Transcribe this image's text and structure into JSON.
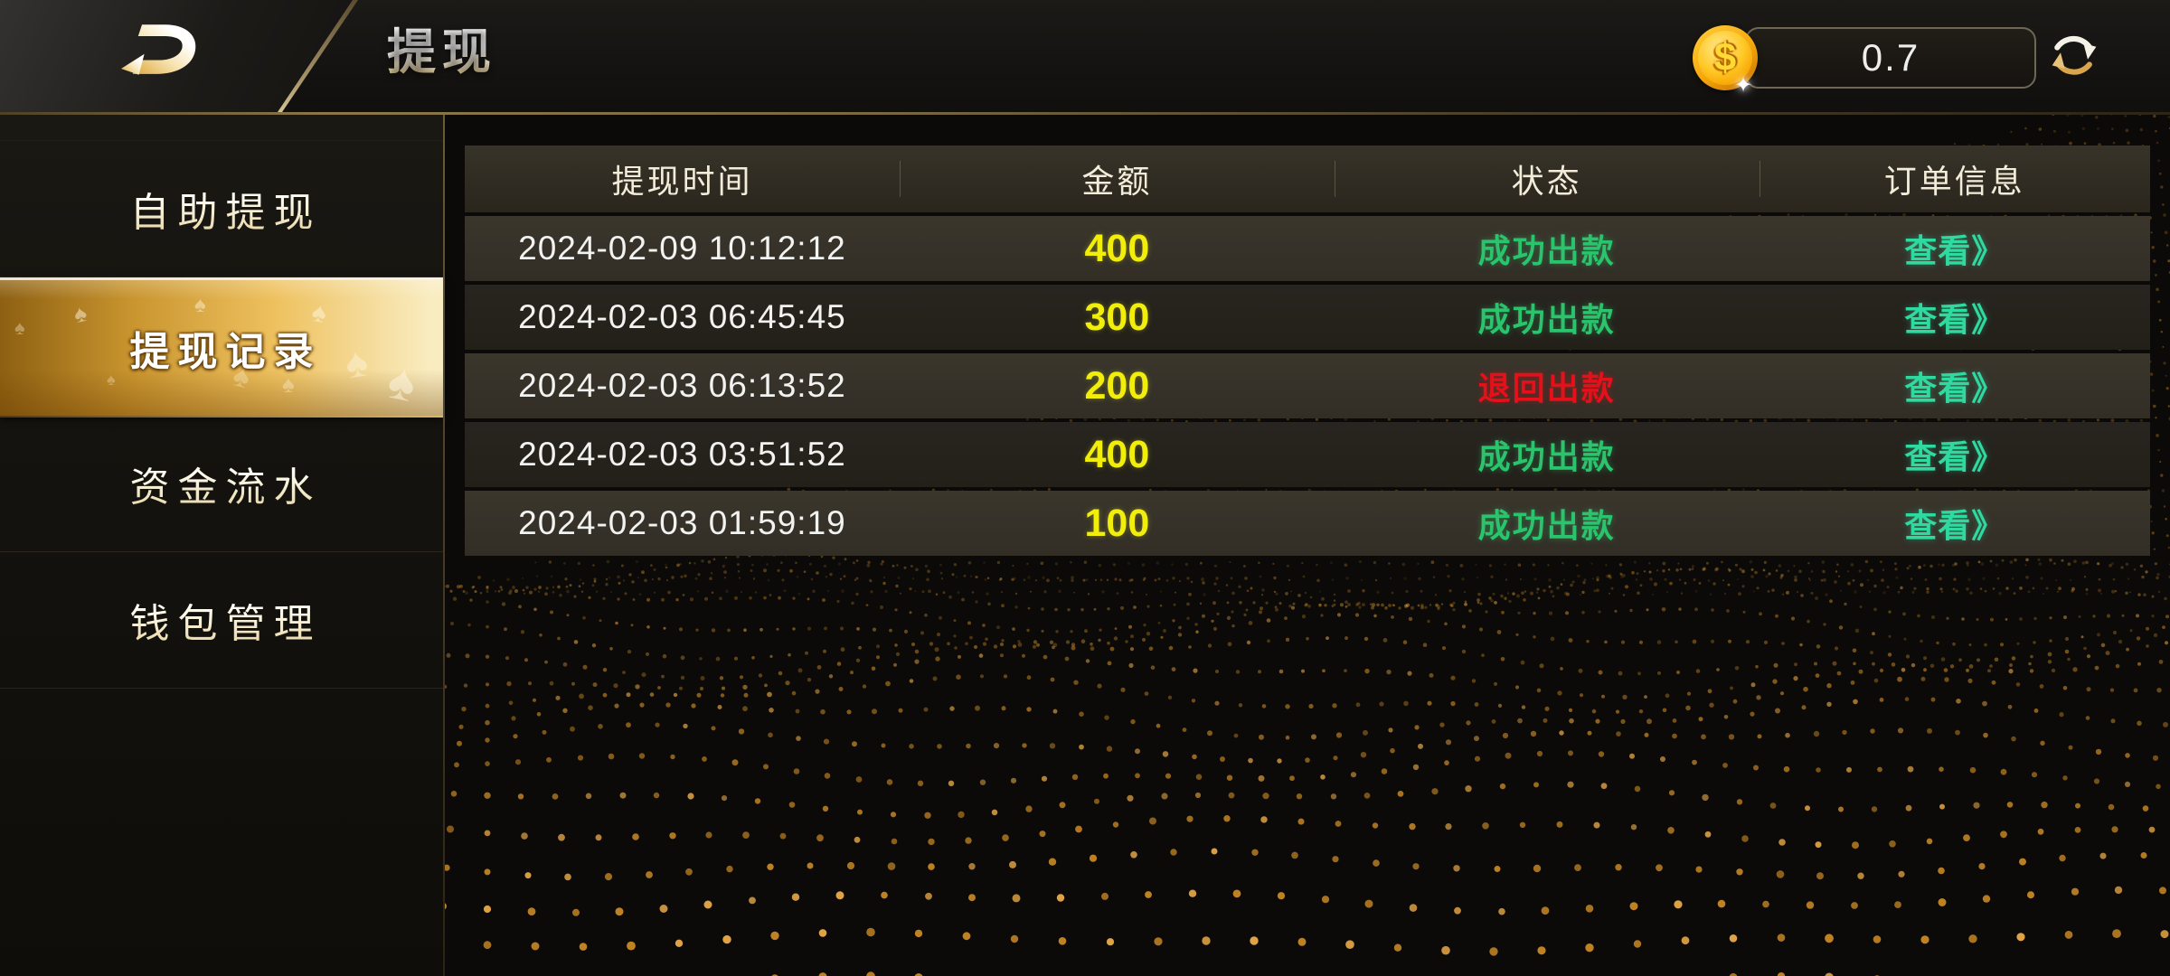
{
  "header": {
    "title": "提现",
    "balance": "0.7",
    "coin_symbol": "$"
  },
  "sidebar": {
    "items": [
      {
        "label": "自助提现",
        "state": ""
      },
      {
        "label": "提现记录",
        "state": "active"
      },
      {
        "label": "资金流水",
        "state": ""
      },
      {
        "label": "钱包管理",
        "state": ""
      }
    ]
  },
  "table": {
    "columns": [
      "提现时间",
      "金额",
      "状态",
      "订单信息"
    ],
    "rows": [
      {
        "time": "2024-02-09 10:12:12",
        "amount": "400",
        "status": "成功出款",
        "status_type": "success",
        "action": "查看》"
      },
      {
        "time": "2024-02-03 06:45:45",
        "amount": "300",
        "status": "成功出款",
        "status_type": "success",
        "action": "查看》"
      },
      {
        "time": "2024-02-03 06:13:52",
        "amount": "200",
        "status": "退回出款",
        "status_type": "returned",
        "action": "查看》"
      },
      {
        "time": "2024-02-03 03:51:52",
        "amount": "400",
        "status": "成功出款",
        "status_type": "success",
        "action": "查看》"
      },
      {
        "time": "2024-02-03 01:59:19",
        "amount": "100",
        "status": "成功出款",
        "status_type": "success",
        "action": "查看》"
      }
    ]
  },
  "colors": {
    "accent_gold": "#e9bd5d",
    "amount_yellow": "#f2ee0b",
    "success_green": "#2bc46d",
    "returned_red": "#e51019",
    "link_teal": "#2fd9a0",
    "particle_gold": "#cf8d26"
  }
}
